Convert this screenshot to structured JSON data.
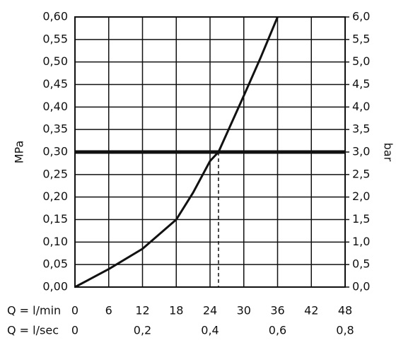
{
  "chart_data": {
    "type": "line",
    "ylabel": "MPa",
    "y2label": "bar",
    "xlabel": "Q = l/min",
    "x2label": "Q = l/sec",
    "x": [
      0,
      6,
      12,
      18,
      21,
      24,
      25.5,
      30,
      33,
      36
    ],
    "series": [
      {
        "color": "#111111",
        "values": [
          0,
          0.04,
          0.085,
          0.15,
          0.21,
          0.28,
          0.3,
          0.425,
          0.51,
          0.6
        ]
      }
    ],
    "xlim": [
      0,
      48
    ],
    "xticks": [
      0,
      6,
      12,
      18,
      24,
      30,
      36,
      42,
      48
    ],
    "x2lim": [
      0,
      0.8
    ],
    "x2ticks": [
      0,
      {
        "value": 0.2,
        "label": "0,2"
      },
      {
        "value": 0.4,
        "label": "0,4"
      },
      {
        "value": 0.6,
        "label": "0,6"
      },
      {
        "value": 0.8,
        "label": "0,8"
      }
    ],
    "ylim": [
      0,
      0.6
    ],
    "yticks": [
      {
        "value": 0,
        "label": "0,00"
      },
      {
        "value": 0.05,
        "label": "0,05"
      },
      {
        "value": 0.1,
        "label": "0,10"
      },
      {
        "value": 0.15,
        "label": "0,15"
      },
      {
        "value": 0.2,
        "label": "0,20"
      },
      {
        "value": 0.25,
        "label": "0,25"
      },
      {
        "value": 0.3,
        "label": "0,30"
      },
      {
        "value": 0.35,
        "label": "0,35"
      },
      {
        "value": 0.4,
        "label": "0,40"
      },
      {
        "value": 0.45,
        "label": "0,45"
      },
      {
        "value": 0.5,
        "label": "0,50"
      },
      {
        "value": 0.55,
        "label": "0,55"
      },
      {
        "value": 0.6,
        "label": "0,60"
      }
    ],
    "y2lim": [
      0,
      6
    ],
    "y2ticks": [
      {
        "value": 0,
        "label": "0,0"
      },
      {
        "value": 0.5,
        "label": "0,5"
      },
      {
        "value": 1,
        "label": "1,0"
      },
      {
        "value": 1.5,
        "label": "1,5"
      },
      {
        "value": 2,
        "label": "2,0"
      },
      {
        "value": 2.5,
        "label": "2,5"
      },
      {
        "value": 3,
        "label": "3,0"
      },
      {
        "value": 3.5,
        "label": "3,5"
      },
      {
        "value": 4,
        "label": "4,0"
      },
      {
        "value": 4.5,
        "label": "4,5"
      },
      {
        "value": 5,
        "label": "5,0"
      },
      {
        "value": 5.5,
        "label": "5,5"
      },
      {
        "value": 6,
        "label": "6,0"
      }
    ],
    "grid": true,
    "reference_y": 0.3,
    "reference_x": 25.5
  }
}
